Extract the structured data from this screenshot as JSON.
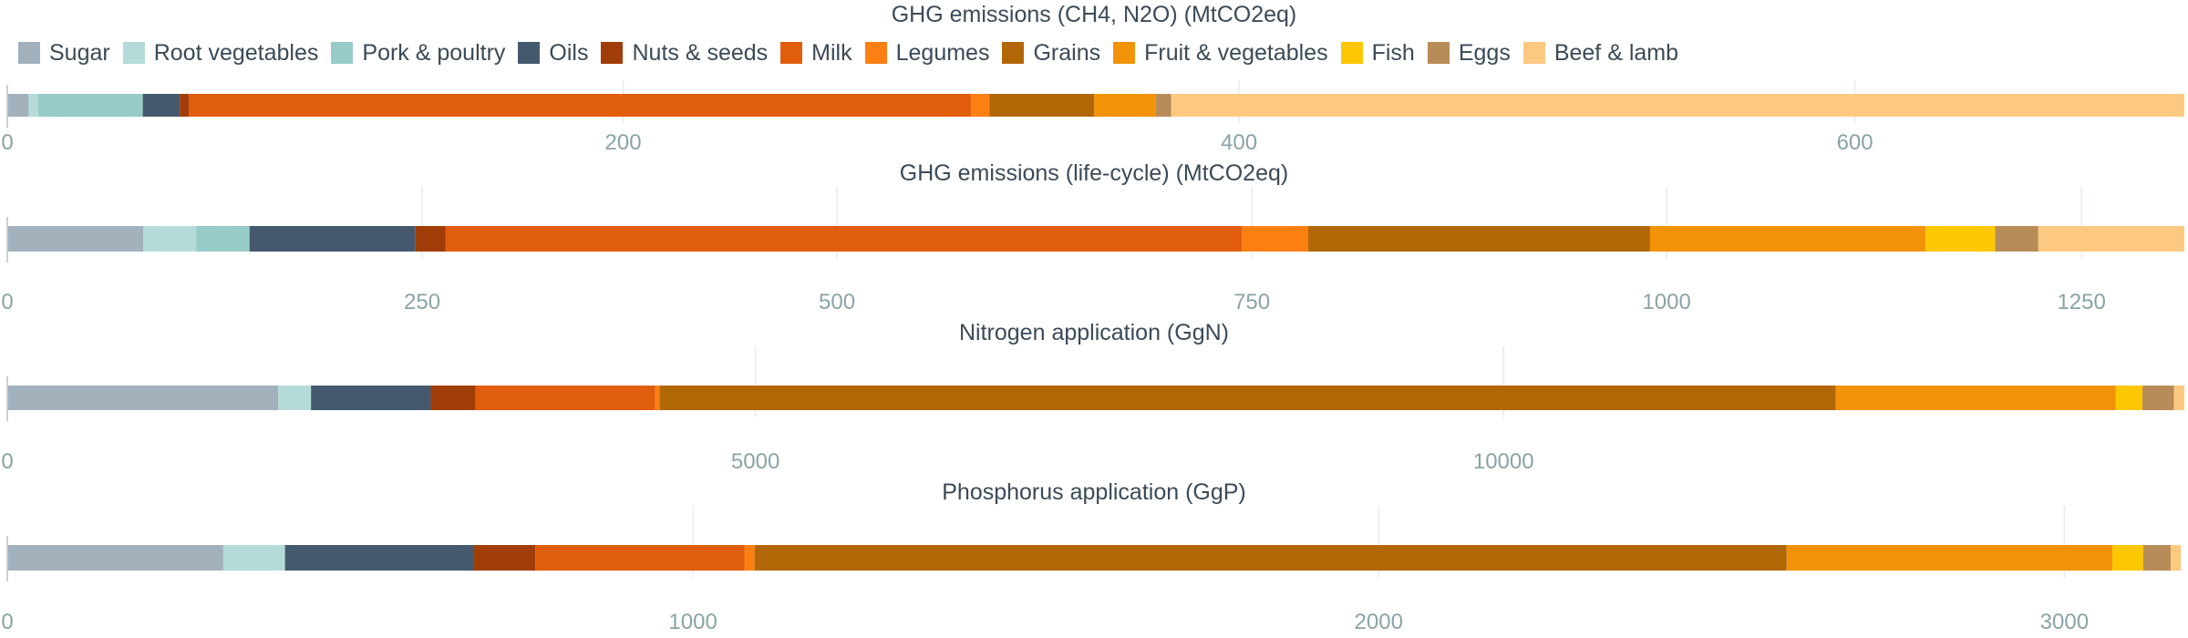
{
  "legend": {
    "items": [
      {
        "label": "Sugar",
        "color": "#a3b1bd"
      },
      {
        "label": "Root vegetables",
        "color": "#b5dbd8"
      },
      {
        "label": "Pork & poultry",
        "color": "#96cbc8"
      },
      {
        "label": "Oils",
        "color": "#44596d"
      },
      {
        "label": "Nuts & seeds",
        "color": "#a13d08"
      },
      {
        "label": "Milk",
        "color": "#e05d0d"
      },
      {
        "label": "Legumes",
        "color": "#fb7f12"
      },
      {
        "label": "Grains",
        "color": "#b26707"
      },
      {
        "label": "Fruit & vegetables",
        "color": "#f29208"
      },
      {
        "label": "Fish",
        "color": "#fec704"
      },
      {
        "label": "Eggs",
        "color": "#b88c58"
      },
      {
        "label": "Beef & lamb",
        "color": "#fdc981"
      }
    ]
  },
  "chart_data": [
    {
      "type": "bar",
      "orientation": "horizontal-stacked",
      "title": "GHG emissions (CH4, N2O) (MtCO2eq)",
      "xlim": [
        0,
        707
      ],
      "ticks": [
        0,
        200,
        400,
        600
      ],
      "series": [
        {
          "name": "Sugar",
          "value": 7
        },
        {
          "name": "Root vegetables",
          "value": 3
        },
        {
          "name": "Pork & poultry",
          "value": 34
        },
        {
          "name": "Oils",
          "value": 12
        },
        {
          "name": "Nuts & seeds",
          "value": 3
        },
        {
          "name": "Milk",
          "value": 254
        },
        {
          "name": "Legumes",
          "value": 6
        },
        {
          "name": "Grains",
          "value": 34
        },
        {
          "name": "Fruit & vegetables",
          "value": 20
        },
        {
          "name": "Fish",
          "value": 0
        },
        {
          "name": "Eggs",
          "value": 5
        },
        {
          "name": "Beef & lamb",
          "value": 329
        }
      ]
    },
    {
      "type": "bar",
      "orientation": "horizontal-stacked",
      "title": "GHG emissions (life-cycle) (MtCO2eq)",
      "xlim": [
        0,
        1312
      ],
      "ticks": [
        0,
        250,
        500,
        750,
        1000,
        1250
      ],
      "series": [
        {
          "name": "Sugar",
          "value": 82
        },
        {
          "name": "Root vegetables",
          "value": 32
        },
        {
          "name": "Pork & poultry",
          "value": 32
        },
        {
          "name": "Oils",
          "value": 100
        },
        {
          "name": "Nuts & seeds",
          "value": 18
        },
        {
          "name": "Milk",
          "value": 480
        },
        {
          "name": "Legumes",
          "value": 40
        },
        {
          "name": "Grains",
          "value": 206
        },
        {
          "name": "Fruit & vegetables",
          "value": 166
        },
        {
          "name": "Fish",
          "value": 42
        },
        {
          "name": "Eggs",
          "value": 26
        },
        {
          "name": "Beef & lamb",
          "value": 88
        }
      ]
    },
    {
      "type": "bar",
      "orientation": "horizontal-stacked",
      "title": "Nitrogen application (GgN)",
      "xlim": [
        0,
        14550
      ],
      "ticks": [
        0,
        5000,
        10000
      ],
      "series": [
        {
          "name": "Sugar",
          "value": 1810
        },
        {
          "name": "Root vegetables",
          "value": 220
        },
        {
          "name": "Pork & poultry",
          "value": 0
        },
        {
          "name": "Oils",
          "value": 800
        },
        {
          "name": "Nuts & seeds",
          "value": 300
        },
        {
          "name": "Milk",
          "value": 1200
        },
        {
          "name": "Legumes",
          "value": 30
        },
        {
          "name": "Grains",
          "value": 7860
        },
        {
          "name": "Fruit & vegetables",
          "value": 1870
        },
        {
          "name": "Fish",
          "value": 180
        },
        {
          "name": "Eggs",
          "value": 210
        },
        {
          "name": "Beef & lamb",
          "value": 70
        }
      ]
    },
    {
      "type": "bar",
      "orientation": "horizontal-stacked",
      "title": "Phosphorus application (GgP)",
      "xlim": [
        0,
        3175
      ],
      "ticks": [
        0,
        1000,
        2000,
        3000
      ],
      "series": [
        {
          "name": "Sugar",
          "value": 315
        },
        {
          "name": "Root vegetables",
          "value": 90
        },
        {
          "name": "Pork & poultry",
          "value": 0
        },
        {
          "name": "Oils",
          "value": 275
        },
        {
          "name": "Nuts & seeds",
          "value": 90
        },
        {
          "name": "Milk",
          "value": 305
        },
        {
          "name": "Legumes",
          "value": 15
        },
        {
          "name": "Grains",
          "value": 1505
        },
        {
          "name": "Fruit & vegetables",
          "value": 475
        },
        {
          "name": "Fish",
          "value": 45
        },
        {
          "name": "Eggs",
          "value": 40
        },
        {
          "name": "Beef & lamb",
          "value": 15
        }
      ]
    }
  ]
}
